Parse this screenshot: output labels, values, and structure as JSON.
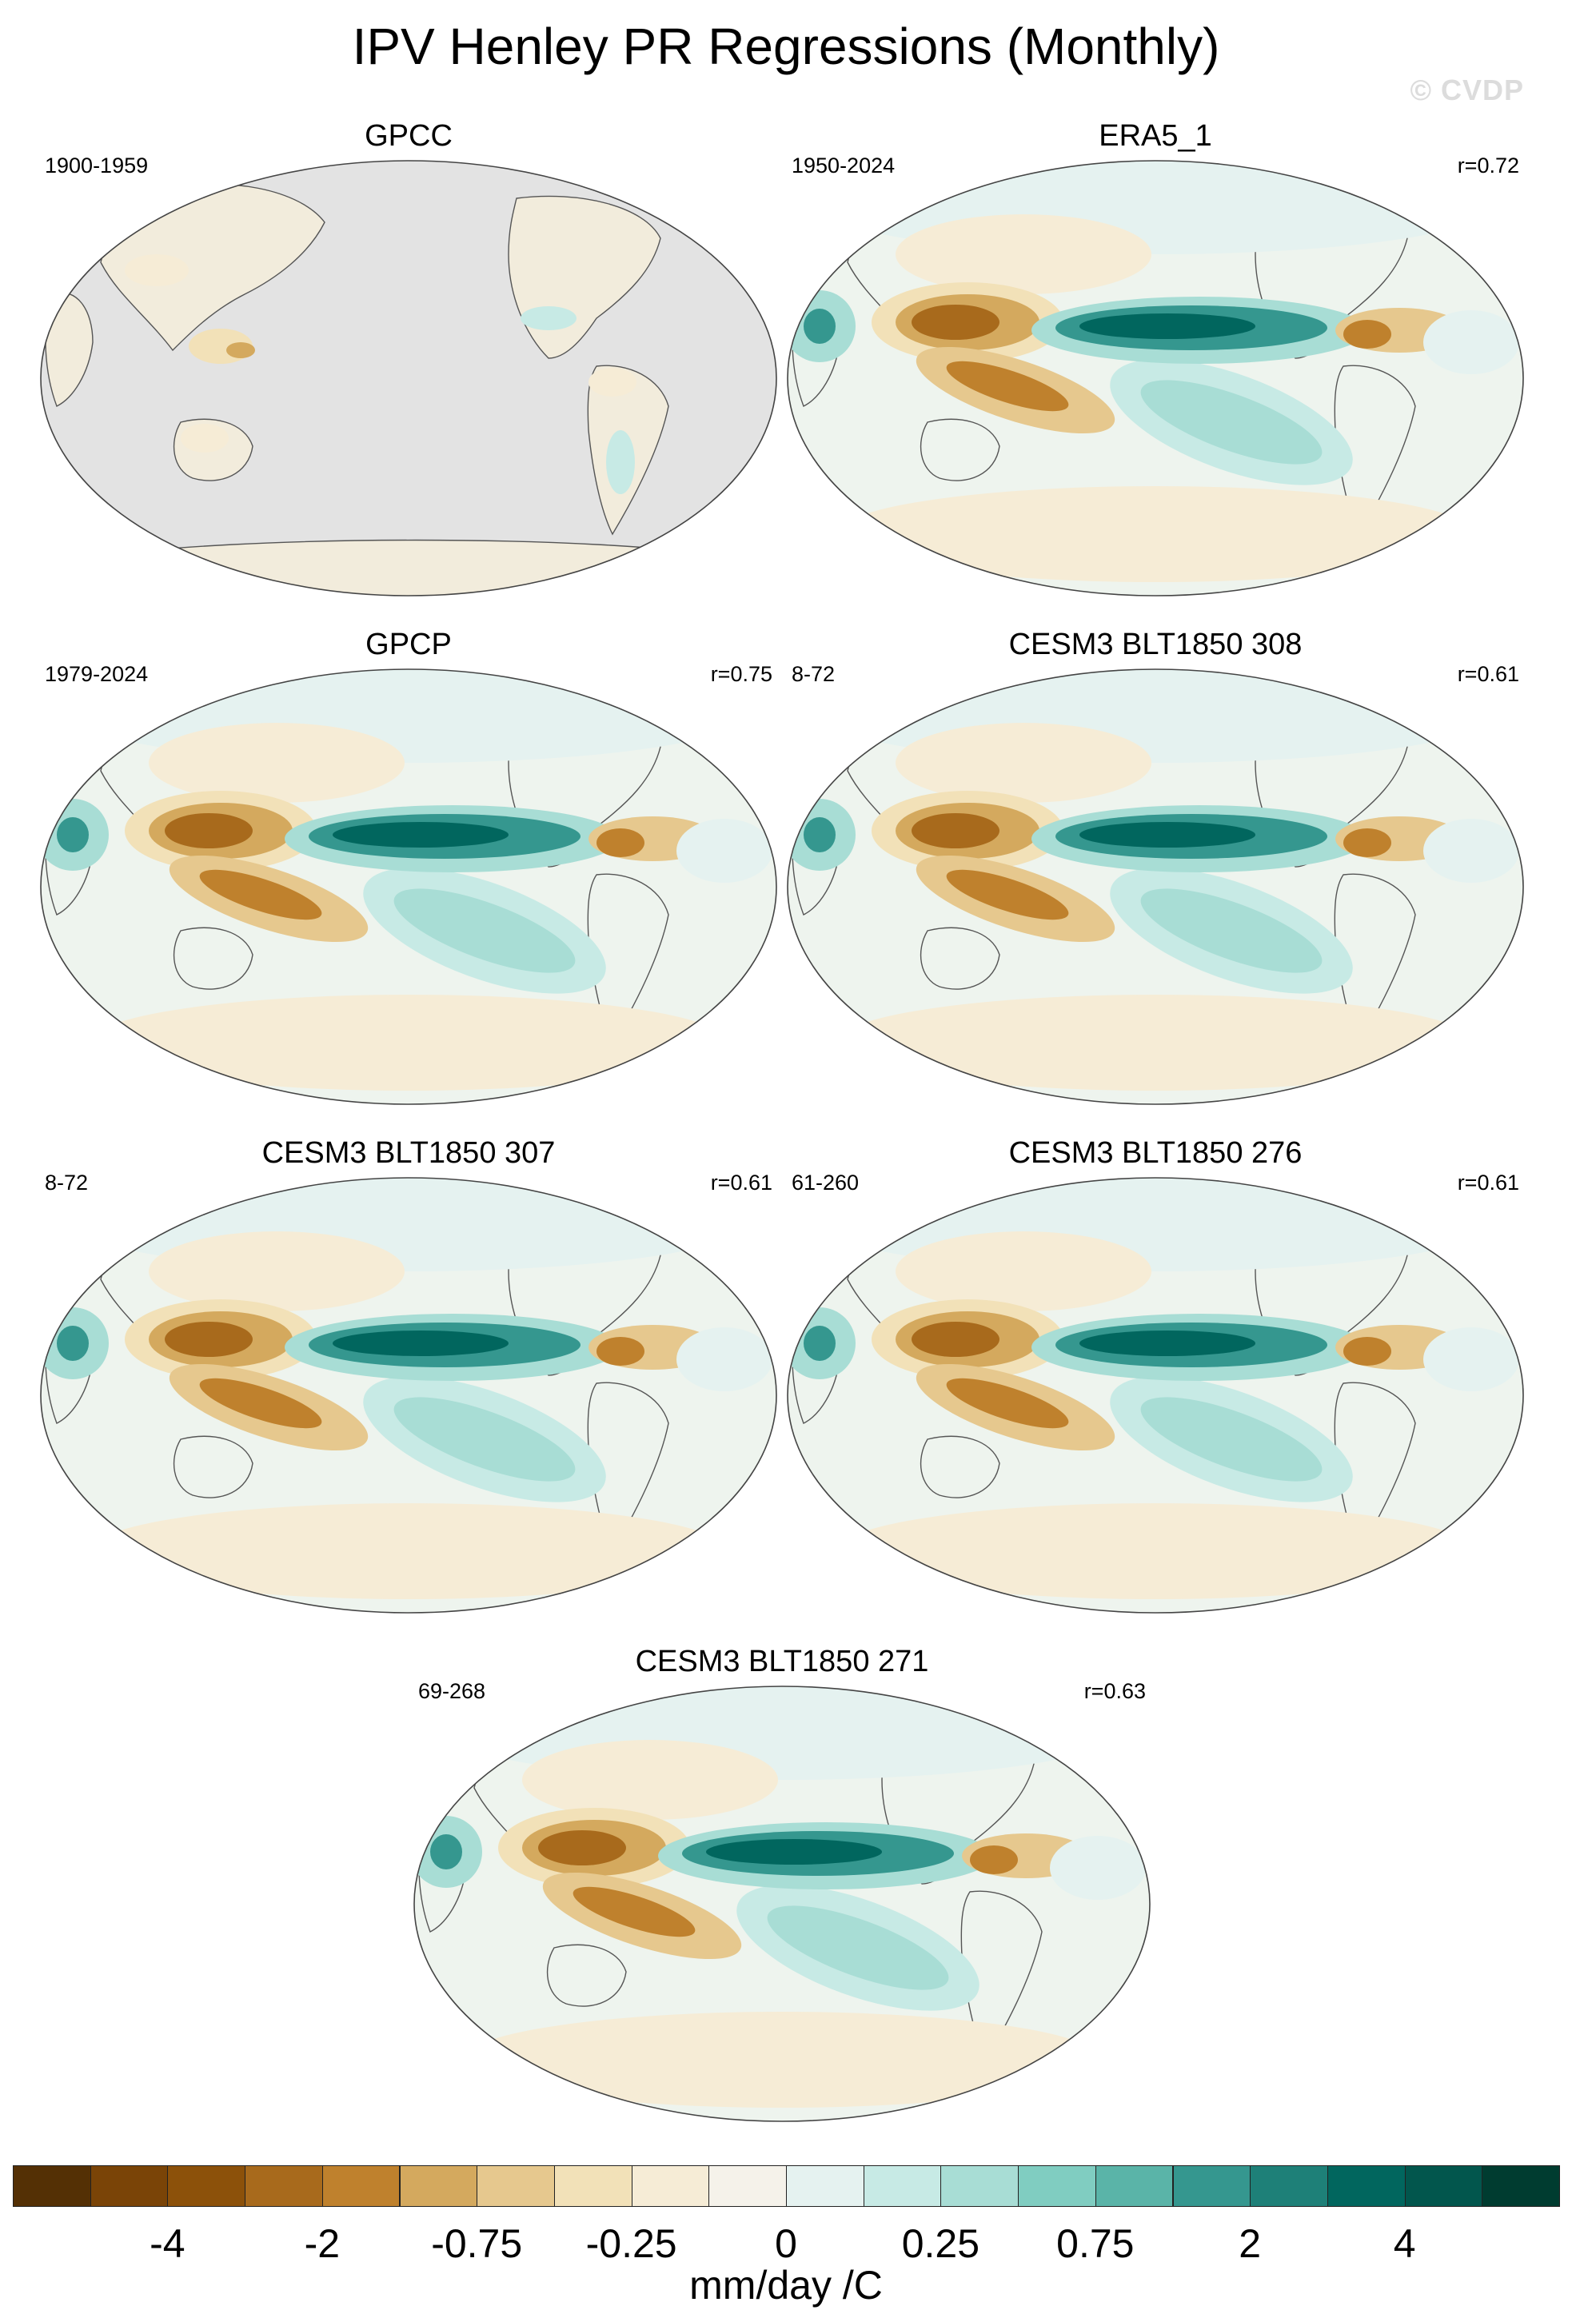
{
  "title": "IPV Henley PR Regressions (Monthly)",
  "watermark": "© CVDP",
  "panels": [
    {
      "title": "GPCC",
      "period": "1900-1959",
      "corr": "",
      "kind": "land"
    },
    {
      "title": "ERA5_1",
      "period": "1950-2024",
      "corr": "r=0.72",
      "kind": "full"
    },
    {
      "title": "GPCP",
      "period": "1979-2024",
      "corr": "r=0.75",
      "kind": "full"
    },
    {
      "title": "CESM3 BLT1850 308",
      "period": "8-72",
      "corr": "r=0.61",
      "kind": "full"
    },
    {
      "title": "CESM3 BLT1850 307",
      "period": "8-72",
      "corr": "r=0.61",
      "kind": "full"
    },
    {
      "title": "CESM3 BLT1850 276",
      "period": "61-260",
      "corr": "r=0.61",
      "kind": "full"
    },
    {
      "title": "CESM3 BLT1850 271",
      "period": "69-268",
      "corr": "r=0.63",
      "kind": "full"
    }
  ],
  "colorbar": {
    "colors": [
      "#543005",
      "#7a4407",
      "#8c510a",
      "#a86a1c",
      "#bf812d",
      "#d4a95e",
      "#e6c88e",
      "#f2e1b8",
      "#f6ecd6",
      "#f5f2ea",
      "#e5f2f0",
      "#c7eae5",
      "#a8ddd5",
      "#80cdc1",
      "#5ab4a8",
      "#35978f",
      "#1e8078",
      "#01665e",
      "#02564d",
      "#003c30"
    ],
    "ticks": [
      "-4",
      "-2",
      "-0.75",
      "-0.25",
      "0",
      "0.25",
      "0.75",
      "2",
      "4"
    ],
    "units": "mm/day /C"
  },
  "map_colors": {
    "ocean_bg": "#eef4ee",
    "missing": "#e3e3e3",
    "land_light": "#f2ecdc",
    "coast": "#555555"
  }
}
